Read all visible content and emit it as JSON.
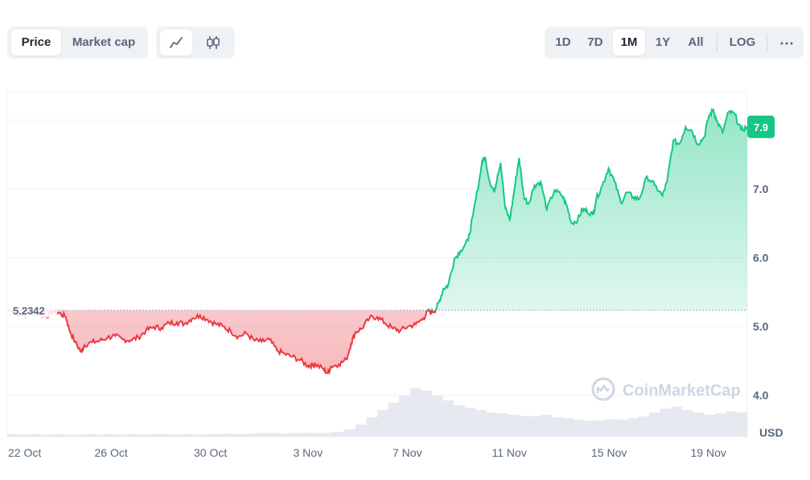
{
  "toolbar": {
    "left_tabs": [
      {
        "label": "Price",
        "active": true
      },
      {
        "label": "Market cap",
        "active": false
      }
    ],
    "chart_type_icons": [
      "line-chart-icon",
      "candlestick-icon"
    ],
    "range_tabs": [
      {
        "label": "1D",
        "active": false
      },
      {
        "label": "7D",
        "active": false
      },
      {
        "label": "1M",
        "active": true
      },
      {
        "label": "1Y",
        "active": false
      },
      {
        "label": "All",
        "active": false
      },
      {
        "label": "LOG",
        "active": false
      }
    ],
    "more_icon": "more-horizontal-icon"
  },
  "watermark": "CoinMarketCap",
  "colors": {
    "up": "#16c784",
    "down": "#ea3943",
    "grid": "#eff2f5",
    "text": "#58667e",
    "volume": "#e3e7ed"
  },
  "chart_data": {
    "type": "line",
    "currency": "USD",
    "baseline_value": 5.2342,
    "baseline_label": "5.2342",
    "current_value": 7.9,
    "current_label": "7.9",
    "ylim": [
      3.4,
      8.4
    ],
    "y_ticks": [
      4.0,
      5.0,
      6.0,
      7.0
    ],
    "y_tick_labels": [
      "4.0",
      "5.0",
      "6.0",
      "7.0"
    ],
    "x_ticks": [
      "22 Oct",
      "26 Oct",
      "30 Oct",
      "3 Nov",
      "7 Nov",
      "11 Nov",
      "15 Nov",
      "19 Nov"
    ],
    "x_range_days": [
      0,
      29.9
    ],
    "points": [
      [
        0.0,
        5.24
      ],
      [
        1.0,
        5.16
      ],
      [
        1.5,
        5.21
      ],
      [
        2.0,
        5.19
      ],
      [
        2.5,
        5.14
      ],
      [
        3.0,
        5.22
      ],
      [
        3.4,
        5.19
      ],
      [
        3.8,
        5.14
      ],
      [
        4.0,
        4.97
      ],
      [
        4.4,
        4.77
      ],
      [
        4.8,
        4.63
      ],
      [
        5.0,
        4.73
      ],
      [
        5.5,
        4.77
      ],
      [
        6.0,
        4.79
      ],
      [
        6.5,
        4.84
      ],
      [
        7.0,
        4.86
      ],
      [
        7.5,
        4.81
      ],
      [
        8.0,
        4.8
      ],
      [
        8.5,
        4.84
      ],
      [
        9.0,
        4.94
      ],
      [
        9.5,
        4.99
      ],
      [
        10.0,
        4.98
      ],
      [
        10.5,
        5.05
      ],
      [
        11.0,
        5.06
      ],
      [
        11.5,
        5.04
      ],
      [
        12.0,
        5.12
      ],
      [
        12.5,
        5.16
      ],
      [
        13.0,
        5.1
      ],
      [
        13.5,
        5.04
      ],
      [
        14.0,
        5.0
      ],
      [
        14.5,
        4.93
      ],
      [
        15.0,
        4.85
      ],
      [
        15.5,
        4.9
      ],
      [
        16.0,
        4.8
      ],
      [
        16.5,
        4.78
      ],
      [
        17.0,
        4.81
      ],
      [
        17.5,
        4.65
      ],
      [
        18.0,
        4.6
      ],
      [
        18.5,
        4.56
      ],
      [
        19.0,
        4.51
      ],
      [
        19.5,
        4.43
      ],
      [
        19.8,
        4.44
      ],
      [
        20.0,
        4.45
      ],
      [
        20.5,
        4.38
      ],
      [
        20.8,
        4.32
      ],
      [
        21.0,
        4.42
      ],
      [
        21.5,
        4.45
      ],
      [
        22.0,
        4.52
      ],
      [
        22.3,
        4.75
      ],
      [
        22.6,
        4.92
      ],
      [
        23.0,
        4.97
      ],
      [
        23.5,
        5.12
      ],
      [
        24.0,
        5.14
      ],
      [
        24.5,
        5.05
      ],
      [
        25.0,
        4.97
      ],
      [
        25.5,
        4.94
      ],
      [
        26.0,
        5.0
      ],
      [
        26.5,
        5.03
      ],
      [
        27.0,
        5.12
      ],
      [
        27.3,
        5.23
      ],
      [
        27.5,
        5.2
      ],
      [
        27.8,
        5.25
      ],
      [
        28.0,
        5.35
      ],
      [
        28.3,
        5.55
      ],
      [
        28.6,
        5.6
      ],
      [
        29.0,
        5.98
      ],
      [
        29.4,
        6.1
      ],
      [
        29.9,
        6.25
      ],
      [
        30.2,
        6.6
      ],
      [
        30.6,
        7.1
      ],
      [
        30.8,
        7.4
      ],
      [
        31.0,
        7.45
      ],
      [
        31.3,
        7.1
      ],
      [
        31.6,
        6.95
      ],
      [
        31.8,
        7.2
      ],
      [
        32.0,
        7.38
      ],
      [
        32.3,
        6.72
      ],
      [
        32.6,
        6.55
      ],
      [
        32.9,
        7.0
      ],
      [
        33.2,
        7.45
      ],
      [
        33.5,
        6.9
      ],
      [
        33.8,
        6.78
      ],
      [
        34.2,
        7.05
      ],
      [
        34.6,
        7.1
      ],
      [
        35.0,
        6.7
      ],
      [
        35.5,
        6.98
      ],
      [
        36.0,
        6.9
      ],
      [
        36.3,
        6.75
      ],
      [
        36.6,
        6.5
      ],
      [
        37.0,
        6.55
      ],
      [
        37.3,
        6.7
      ],
      [
        37.6,
        6.68
      ],
      [
        38.0,
        6.62
      ],
      [
        38.2,
        6.85
      ],
      [
        38.6,
        7.05
      ],
      [
        39.0,
        7.3
      ],
      [
        39.4,
        7.1
      ],
      [
        39.8,
        6.8
      ],
      [
        40.2,
        6.95
      ],
      [
        40.6,
        6.88
      ],
      [
        41.0,
        6.85
      ],
      [
        41.5,
        7.18
      ],
      [
        42.0,
        7.05
      ],
      [
        42.5,
        6.9
      ],
      [
        42.8,
        7.1
      ],
      [
        43.2,
        7.7
      ],
      [
        43.6,
        7.65
      ],
      [
        44.0,
        7.9
      ],
      [
        44.4,
        7.85
      ],
      [
        44.8,
        7.65
      ],
      [
        45.2,
        7.75
      ],
      [
        45.5,
        8.05
      ],
      [
        45.8,
        8.15
      ],
      [
        46.0,
        8.0
      ],
      [
        46.4,
        7.82
      ],
      [
        46.8,
        8.12
      ],
      [
        47.2,
        8.08
      ],
      [
        47.6,
        7.85
      ],
      [
        48.0,
        7.9
      ]
    ],
    "x_scale_note": "points x in days from 22 Oct (y in USD)",
    "volume_series": [
      0.05,
      0.04,
      0.05,
      0.04,
      0.05,
      0.04,
      0.04,
      0.05,
      0.04,
      0.05,
      0.04,
      0.05,
      0.04,
      0.05,
      0.05,
      0.04,
      0.05,
      0.04,
      0.05,
      0.05,
      0.06,
      0.05,
      0.06,
      0.07,
      0.07,
      0.06,
      0.07,
      0.08,
      0.07,
      0.08,
      0.1,
      0.15,
      0.25,
      0.4,
      0.55,
      0.7,
      0.85,
      1.0,
      0.95,
      0.85,
      0.75,
      0.65,
      0.6,
      0.55,
      0.5,
      0.48,
      0.45,
      0.43,
      0.42,
      0.45,
      0.4,
      0.38,
      0.35,
      0.33,
      0.34,
      0.36,
      0.35,
      0.38,
      0.42,
      0.5,
      0.58,
      0.62,
      0.55,
      0.5,
      0.45,
      0.48,
      0.52,
      0.5
    ]
  }
}
